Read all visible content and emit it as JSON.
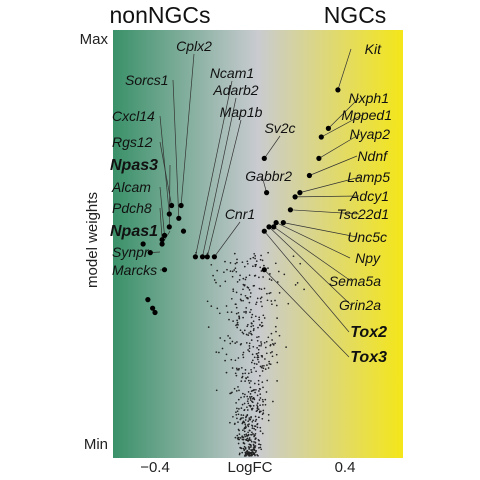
{
  "chart_data": {
    "type": "scatter",
    "title": "",
    "group_labels": {
      "left": "nonNGCs",
      "right": "NGCs"
    },
    "xlabel": "LogFC",
    "ylabel": "model weights",
    "y_tick_labels": {
      "max": "Max",
      "min": "Min"
    },
    "x_ticks": [
      {
        "value": -0.4,
        "label": "−0.4"
      },
      {
        "value": 0.4,
        "label": "0.4"
      }
    ],
    "xlim": [
      -0.6,
      0.6
    ],
    "ylim": [
      0,
      1
    ],
    "background_gradient": {
      "left_color": "#3a9169",
      "mid_color": "#c9cbd0",
      "right_color": "#f4e619"
    },
    "grid": false,
    "legend": "none",
    "highlighted_genes": [
      {
        "name": "Kit",
        "x": 0.37,
        "y": 0.86,
        "bold": false
      },
      {
        "name": "Nxph1",
        "x": 0.33,
        "y": 0.77,
        "bold": false
      },
      {
        "name": "Mpped1",
        "x": 0.3,
        "y": 0.75,
        "bold": false
      },
      {
        "name": "Nyap2",
        "x": 0.29,
        "y": 0.7,
        "bold": false
      },
      {
        "name": "Ndnf",
        "x": 0.25,
        "y": 0.66,
        "bold": false
      },
      {
        "name": "Lamp5",
        "x": 0.21,
        "y": 0.62,
        "bold": false
      },
      {
        "name": "Adcy1",
        "x": 0.19,
        "y": 0.61,
        "bold": false
      },
      {
        "name": "Tsc22d1",
        "x": 0.17,
        "y": 0.58,
        "bold": false
      },
      {
        "name": "Unc5c",
        "x": 0.14,
        "y": 0.55,
        "bold": false
      },
      {
        "name": "Npy",
        "x": 0.11,
        "y": 0.55,
        "bold": false
      },
      {
        "name": "Sema5a",
        "x": 0.1,
        "y": 0.54,
        "bold": false
      },
      {
        "name": "Grin2a",
        "x": 0.08,
        "y": 0.54,
        "bold": false
      },
      {
        "name": "Tox2",
        "x": 0.06,
        "y": 0.53,
        "bold": true
      },
      {
        "name": "Tox3",
        "x": 0.06,
        "y": 0.44,
        "bold": true
      },
      {
        "name": "Gabbr2",
        "x": 0.07,
        "y": 0.62,
        "bold": false
      },
      {
        "name": "Sv2c",
        "x": 0.06,
        "y": 0.7,
        "bold": false
      },
      {
        "name": "Cplx2",
        "x": -0.29,
        "y": 0.59,
        "bold": false
      },
      {
        "name": "Ncam1",
        "x": -0.23,
        "y": 0.47,
        "bold": false
      },
      {
        "name": "Adarb2",
        "x": -0.2,
        "y": 0.47,
        "bold": false
      },
      {
        "name": "Map1b",
        "x": -0.18,
        "y": 0.47,
        "bold": false
      },
      {
        "name": "Cnr1",
        "x": -0.15,
        "y": 0.47,
        "bold": false
      },
      {
        "name": "Sorcs1",
        "x": -0.3,
        "y": 0.56,
        "bold": false
      },
      {
        "name": "Cxcl14",
        "x": -0.34,
        "y": 0.57,
        "bold": false
      },
      {
        "name": "Rgs12",
        "x": -0.33,
        "y": 0.59,
        "bold": false
      },
      {
        "name": "Npas3",
        "x": -0.34,
        "y": 0.54,
        "bold": true
      },
      {
        "name": "Alcam",
        "x": -0.36,
        "y": 0.52,
        "bold": false
      },
      {
        "name": "Pdch8",
        "x": -0.37,
        "y": 0.51,
        "bold": false
      },
      {
        "name": "Npas1",
        "x": -0.37,
        "y": 0.5,
        "bold": true
      },
      {
        "name": "Synpr",
        "x": -0.42,
        "y": 0.48,
        "bold": false
      },
      {
        "name": "Marcks",
        "x": -0.36,
        "y": 0.44,
        "bold": false
      }
    ],
    "extra_large_points": [
      {
        "x": -0.43,
        "y": 0.37
      },
      {
        "x": -0.41,
        "y": 0.35
      },
      {
        "x": -0.4,
        "y": 0.34
      },
      {
        "x": -0.45,
        "y": 0.5
      },
      {
        "x": -0.28,
        "y": 0.53
      }
    ],
    "background_points": {
      "count": 650,
      "color": "#222222"
    }
  }
}
